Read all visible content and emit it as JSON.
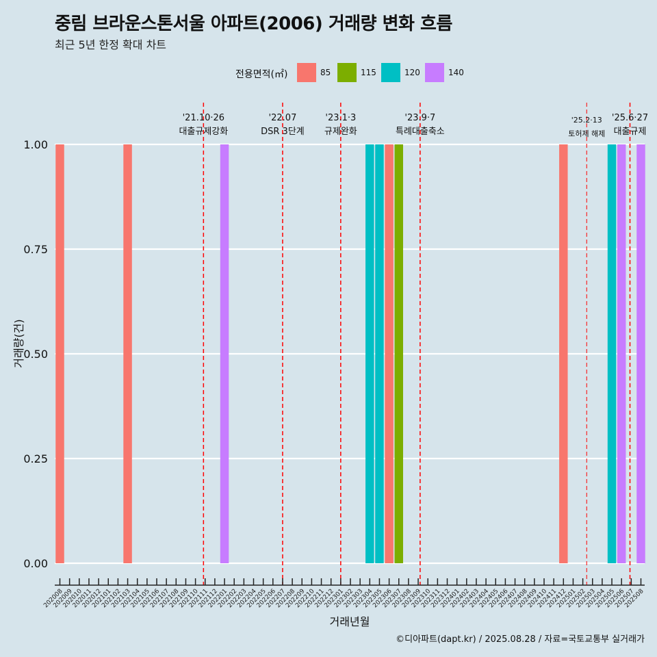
{
  "chart_data": {
    "type": "bar",
    "title": "중림 브라운스톤서울 아파트(2006) 거래량 변화 흐름",
    "subtitle": "최근 5년 한정 확대 차트",
    "xlabel": "거래년월",
    "ylabel": "거래량(건)",
    "ylim": [
      0,
      1
    ],
    "yticks": [
      "0.00",
      "0.25",
      "0.50",
      "0.75",
      "1.00"
    ],
    "grid": true,
    "legend_title": "전용면적(㎡)",
    "legend_position": "top",
    "categories": [
      "202008",
      "202009",
      "202010",
      "202011",
      "202012",
      "202101",
      "202102",
      "202103",
      "202104",
      "202105",
      "202106",
      "202107",
      "202108",
      "202109",
      "202110",
      "202111",
      "202112",
      "202201",
      "202202",
      "202203",
      "202204",
      "202205",
      "202206",
      "202207",
      "202208",
      "202209",
      "202210",
      "202211",
      "202212",
      "202301",
      "202302",
      "202303",
      "202304",
      "202305",
      "202306",
      "202307",
      "202308",
      "202309",
      "202310",
      "202311",
      "202312",
      "202401",
      "202402",
      "202403",
      "202404",
      "202405",
      "202406",
      "202407",
      "202408",
      "202409",
      "202410",
      "202411",
      "202412",
      "202501",
      "202502",
      "202503",
      "202504",
      "202505",
      "202506",
      "202507",
      "202508"
    ],
    "series": [
      {
        "name": "85",
        "color": "#f8766d",
        "values": [
          1,
          0,
          0,
          0,
          0,
          0,
          0,
          1,
          0,
          0,
          0,
          0,
          0,
          0,
          0,
          0,
          0,
          0,
          0,
          0,
          0,
          0,
          0,
          0,
          0,
          0,
          0,
          0,
          0,
          0,
          0,
          0,
          0,
          0,
          1,
          0,
          0,
          0,
          0,
          0,
          0,
          0,
          0,
          0,
          0,
          0,
          0,
          0,
          0,
          0,
          0,
          0,
          1,
          0,
          0,
          0,
          0,
          0,
          0,
          0,
          0
        ]
      },
      {
        "name": "115",
        "color": "#7cae00",
        "values": [
          0,
          0,
          0,
          0,
          0,
          0,
          0,
          0,
          0,
          0,
          0,
          0,
          0,
          0,
          0,
          0,
          0,
          0,
          0,
          0,
          0,
          0,
          0,
          0,
          0,
          0,
          0,
          0,
          0,
          0,
          0,
          0,
          0,
          0,
          0,
          1,
          0,
          0,
          0,
          0,
          0,
          0,
          0,
          0,
          0,
          0,
          0,
          0,
          0,
          0,
          0,
          0,
          0,
          0,
          0,
          0,
          0,
          0,
          0,
          0,
          0
        ]
      },
      {
        "name": "120",
        "color": "#00bfc4",
        "values": [
          0,
          0,
          0,
          0,
          0,
          0,
          0,
          0,
          0,
          0,
          0,
          0,
          0,
          0,
          0,
          0,
          0,
          0,
          0,
          0,
          0,
          0,
          0,
          0,
          0,
          0,
          0,
          0,
          0,
          0,
          0,
          0,
          1,
          1,
          0,
          0,
          0,
          0,
          0,
          0,
          0,
          0,
          0,
          0,
          0,
          0,
          0,
          0,
          0,
          0,
          0,
          0,
          0,
          0,
          0,
          0,
          0,
          1,
          0,
          0,
          0
        ]
      },
      {
        "name": "140",
        "color": "#c77cff",
        "values": [
          0,
          0,
          0,
          0,
          0,
          0,
          0,
          0,
          0,
          0,
          0,
          0,
          0,
          0,
          0,
          0,
          0,
          1,
          0,
          0,
          0,
          0,
          0,
          0,
          0,
          0,
          0,
          0,
          0,
          0,
          0,
          0,
          0,
          0,
          0,
          0,
          0,
          0,
          0,
          0,
          0,
          0,
          0,
          0,
          0,
          0,
          0,
          0,
          0,
          0,
          0,
          0,
          0,
          0,
          0,
          0,
          0,
          0,
          1,
          0,
          1
        ]
      }
    ],
    "annotations": [
      {
        "x": "202110",
        "offset": 0.83,
        "date": "'21.10·26",
        "label": "대출규제강화",
        "style": "dashed",
        "width": 1.5,
        "size": "normal"
      },
      {
        "x": "202207",
        "offset": 0.0,
        "date": "'22.07",
        "label": "DSR 3단계",
        "style": "dashed",
        "width": 1.5,
        "size": "normal"
      },
      {
        "x": "202301",
        "offset": 0.0,
        "date": "'23.1·3",
        "label": "규제완화",
        "style": "dashed",
        "width": 1.5,
        "size": "normal"
      },
      {
        "x": "202309",
        "offset": 0.2,
        "date": "'23.9·7",
        "label": "특례대출축소",
        "style": "dashed",
        "width": 1.5,
        "size": "normal"
      },
      {
        "x": "202502",
        "offset": 0.4,
        "date": "'25.2·13",
        "label": "토허제 해제",
        "style": "dashed",
        "width": 1,
        "size": "small"
      },
      {
        "x": "202506",
        "offset": 0.87,
        "date": "'25.6·27",
        "label": "대출규제",
        "style": "dashed",
        "width": 1.5,
        "size": "normal"
      }
    ],
    "colors": {
      "background": "#d6e4eb",
      "grid": "#ffffff",
      "annotation_line": "#ff0000",
      "axis": "#222222"
    }
  },
  "caption": "©디아파트(dapt.kr) / 2025.08.28 / 자료=국토교통부 실거래가"
}
